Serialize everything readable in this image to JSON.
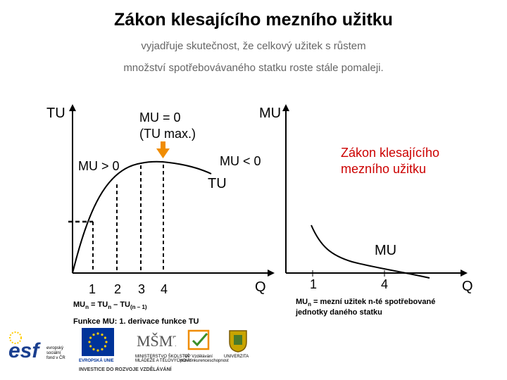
{
  "title": "Zákon klesajícího mezního užitku",
  "subtitle_line1": "vyjadřuje skutečnost, že celkový užitek s růstem",
  "subtitle_line2": "množství spotřebovávaného statku roste stále pomaleji.",
  "left_graph": {
    "y_axis_label": "TU",
    "x_axis_label": "Q",
    "curve_label": "TU",
    "mu_zero_line1": "MU = 0",
    "mu_zero_line2": "(TU max.)",
    "mu_positive": "MU > 0",
    "mu_negative": "MU < 0",
    "x_ticks": [
      "1",
      "2",
      "3",
      "4"
    ],
    "formula_mu": "MU",
    "formula_n1": "n",
    "formula_eq": " = TU",
    "formula_n2": "n",
    "formula_minus": " – TU",
    "formula_n3": "(n – 1)",
    "derivative_note": "Funkce MU: 1. derivace funkce TU"
  },
  "right_graph": {
    "y_axis_label": "MU",
    "x_axis_label": "Q",
    "curve_label": "MU",
    "law_label_line1": "Zákon klesajícího",
    "law_label_line2": "mezního užitku",
    "x_ticks": [
      "1",
      "4"
    ],
    "definition_mu": "MU",
    "definition_n": "n",
    "definition_rest": " = mezní užitek n-té spotřebované",
    "definition_line2": "jednotky daného statku"
  },
  "logos": {
    "esf_text": "esf",
    "esf_caption1": "evropský",
    "esf_caption2": "sociální",
    "esf_caption3": "fond v ČR",
    "eu_caption": "EVROPSKÁ UNIE",
    "msmt_text": "MŠMT",
    "msmt_caption1": "MINISTERSTVO ŠKOLSTVÍ,",
    "msmt_caption2": "MLÁDEŽE A TĚLOVÝCHOVY",
    "op_caption1": "OP Vzdělávání",
    "op_caption2": "pro konkurenceschopnost",
    "univ_caption": "UNIVERZITA",
    "invest_text": "INVESTICE DO ROZVOJE VZDĚLÁVÁNÍ"
  },
  "colors": {
    "accent_red": "#cc0000",
    "law_label": "#cc0000",
    "arrow": "#f08c00",
    "eu_blue": "#003399",
    "eu_star": "#ffcc00",
    "esf_blue": "#1a3f8f"
  },
  "icons": [
    "arrow-down-icon",
    "eu-flag-icon",
    "esf-logo-icon",
    "msmt-logo-icon",
    "op-logo-icon",
    "university-crest-icon"
  ]
}
